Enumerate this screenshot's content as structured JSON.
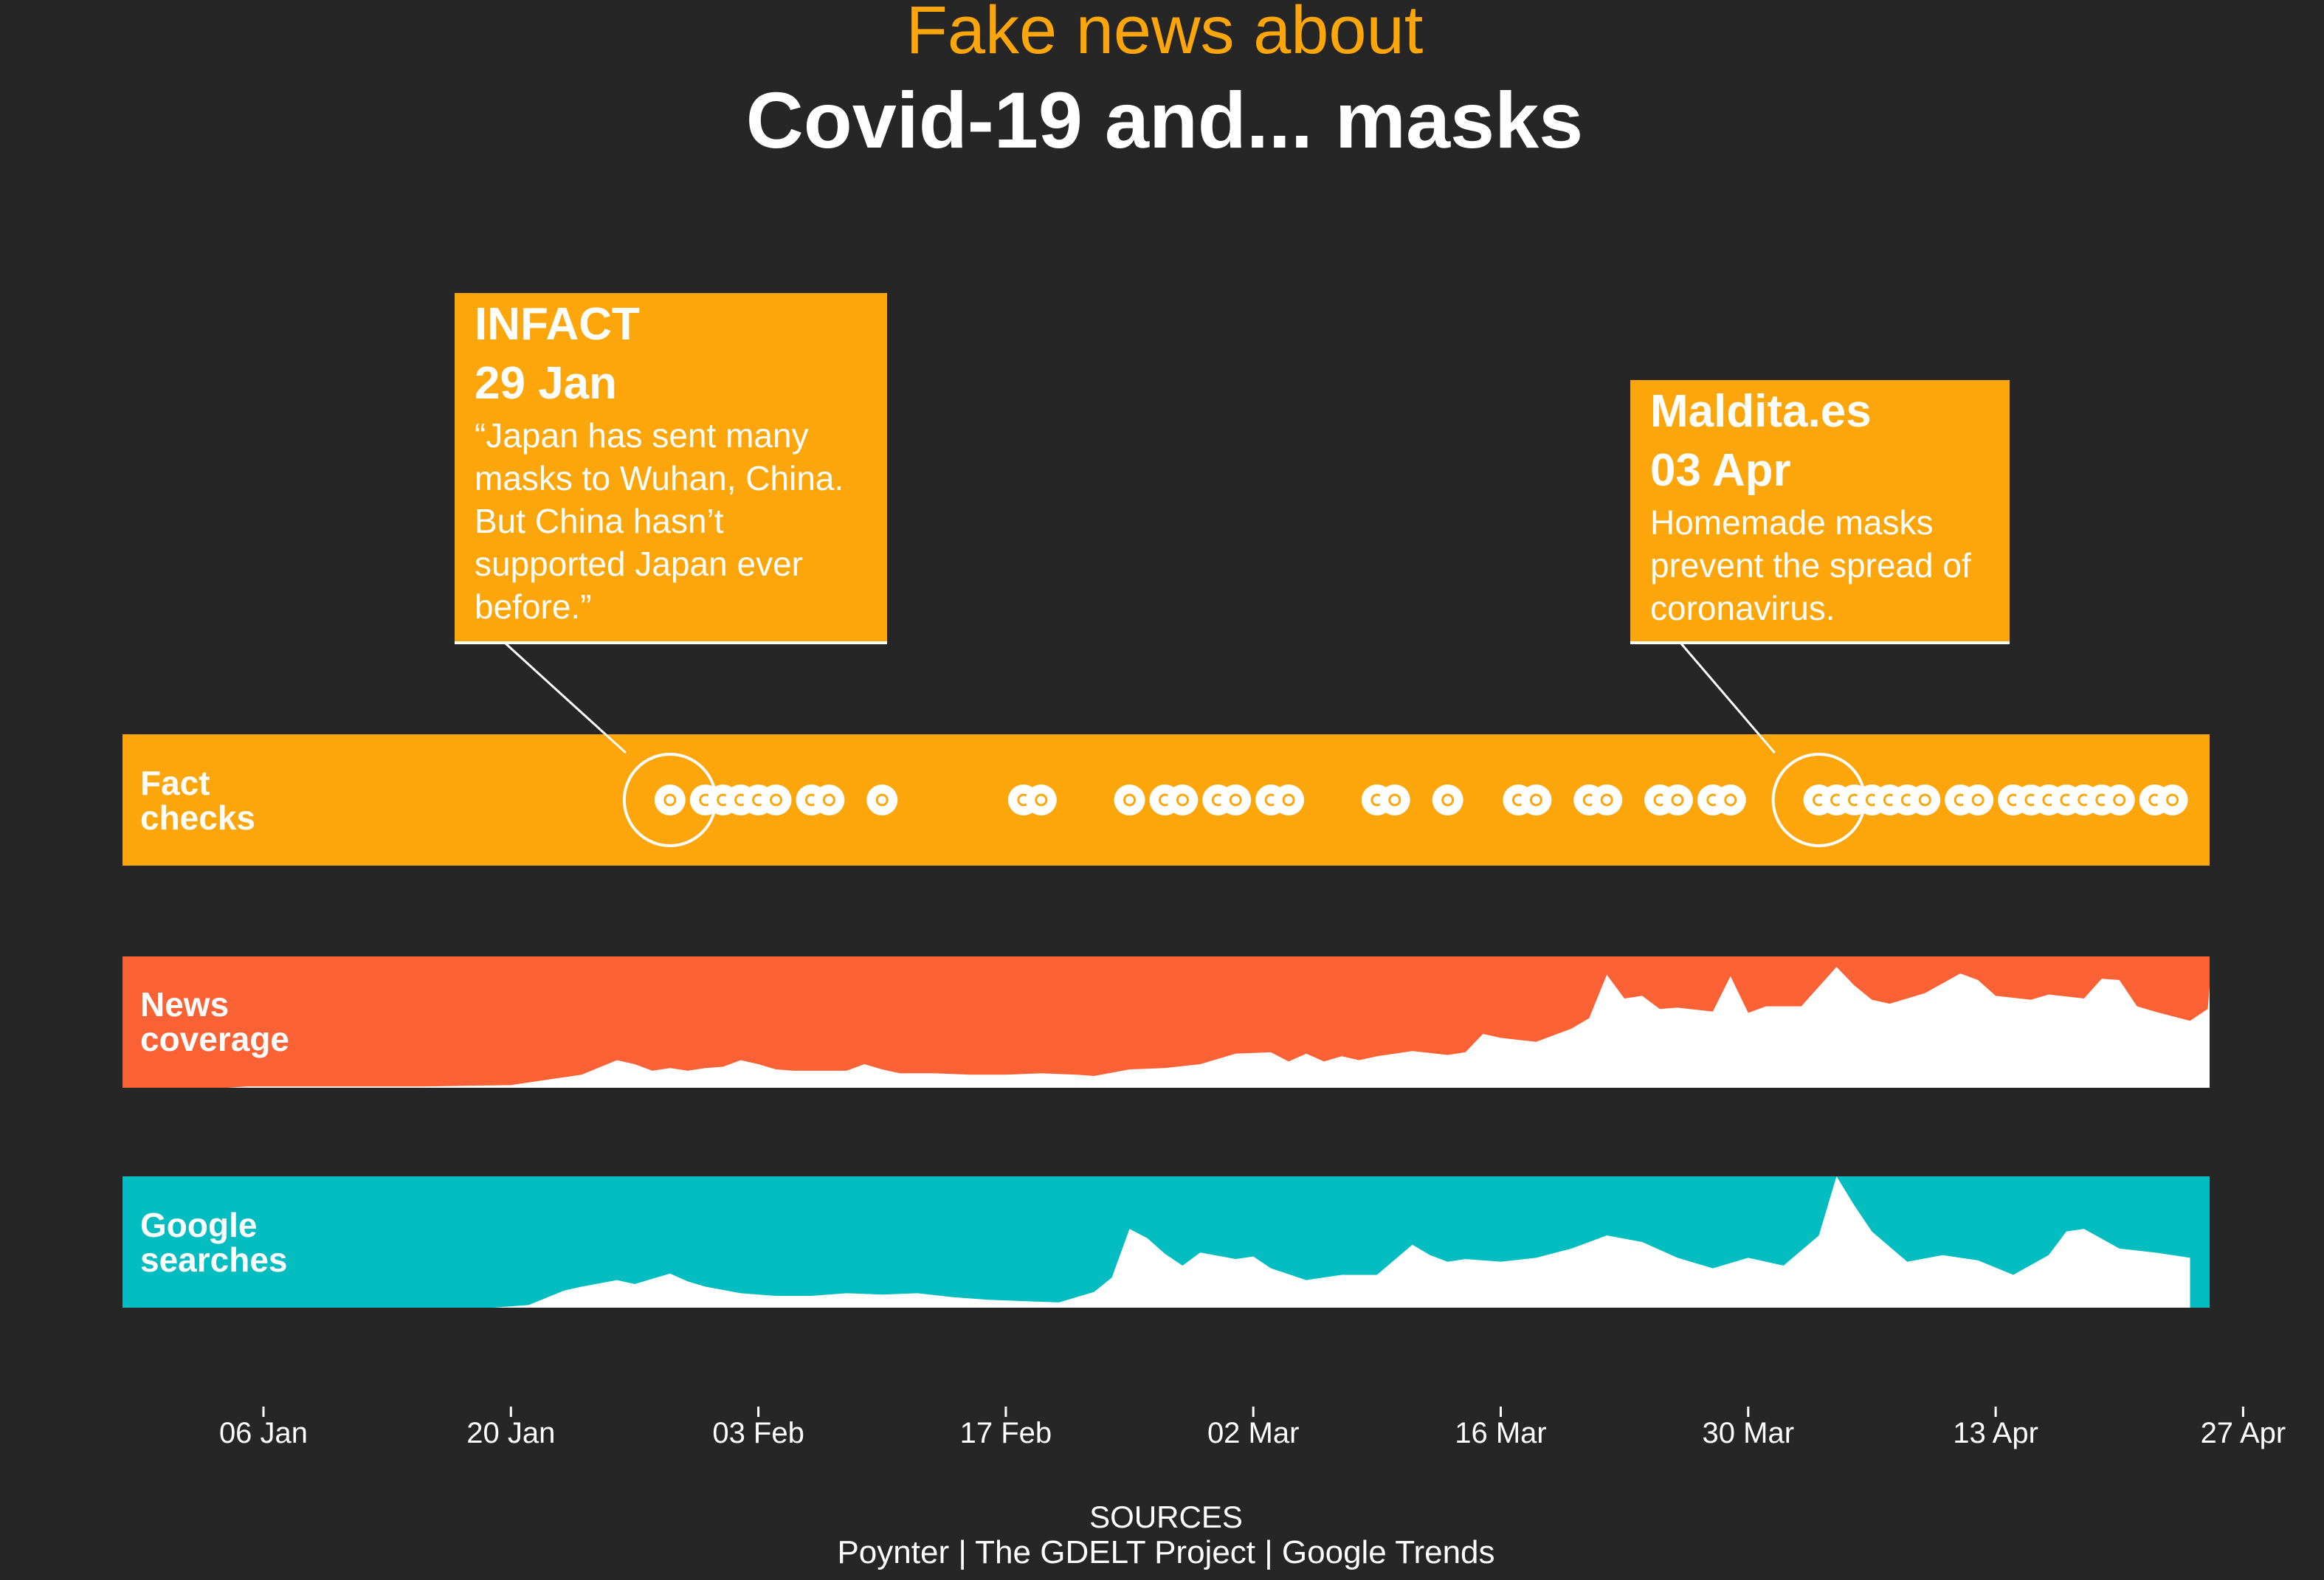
{
  "title": {
    "line1": "Fake news about",
    "line2": "Covid-19 and... masks"
  },
  "colors": {
    "background": "#262626",
    "fact_checks": "#FCA60C",
    "news_coverage": "#FA6135",
    "google_searches": "#04BDC1",
    "area_fill": "#FFFFFF",
    "title_accent": "#FCA60C"
  },
  "callouts": [
    {
      "source": "INFACT",
      "date": "29 Jan",
      "text_lines": [
        "“Japan has sent many",
        "masks to Wuhan, China.",
        "But China hasn’t",
        "supported Japan ever",
        "before.”"
      ],
      "x": "2020-01-29"
    },
    {
      "source": "Maldita.es",
      "date": "03 Apr",
      "text_lines": [
        "Homemade masks",
        "prevent the spread of",
        "coronavirus."
      ],
      "x": "2020-04-03"
    }
  ],
  "sources": {
    "heading": "SOURCES",
    "text": "Poynter | The GDELT Project | Google Trends"
  },
  "chart_data": {
    "type": "area",
    "x_axis": {
      "range": [
        "2019-12-30",
        "2020-04-27"
      ],
      "tick_labels": [
        "06 Jan",
        "20 Jan",
        "03 Feb",
        "17 Feb",
        "02 Mar",
        "16 Mar",
        "30 Mar",
        "13 Apr",
        "27 Apr"
      ],
      "tick_dates": [
        "2020-01-06",
        "2020-01-20",
        "2020-02-03",
        "2020-02-17",
        "2020-03-02",
        "2020-03-16",
        "2020-03-30",
        "2020-04-13",
        "2020-04-27"
      ]
    },
    "panels": [
      {
        "name": "Fact checks",
        "label_lines": [
          "Fact",
          "checks"
        ],
        "type": "dots",
        "highlighted_dates": [
          "2020-01-29",
          "2020-04-03"
        ],
        "dates": [
          "2020-01-29",
          "2020-01-31",
          "2020-02-01",
          "2020-02-02",
          "2020-02-03",
          "2020-02-04",
          "2020-02-06",
          "2020-02-07",
          "2020-02-10",
          "2020-02-18",
          "2020-02-19",
          "2020-02-24",
          "2020-02-26",
          "2020-02-27",
          "2020-02-29",
          "2020-03-01",
          "2020-03-03",
          "2020-03-04",
          "2020-03-09",
          "2020-03-10",
          "2020-03-13",
          "2020-03-17",
          "2020-03-18",
          "2020-03-21",
          "2020-03-22",
          "2020-03-25",
          "2020-03-26",
          "2020-03-28",
          "2020-03-29",
          "2020-04-03",
          "2020-04-04",
          "2020-04-05",
          "2020-04-06",
          "2020-04-07",
          "2020-04-08",
          "2020-04-09",
          "2020-04-11",
          "2020-04-12",
          "2020-04-14",
          "2020-04-15",
          "2020-04-16",
          "2020-04-17",
          "2020-04-18",
          "2020-04-19",
          "2020-04-20",
          "2020-04-22",
          "2020-04-23"
        ]
      },
      {
        "name": "News coverage",
        "label_lines": [
          "News",
          "coverage"
        ],
        "type": "area",
        "ylim": [
          0,
          100
        ],
        "x": [
          "2020-01-04",
          "2020-01-05",
          "2020-01-10",
          "2020-01-15",
          "2020-01-20",
          "2020-01-22",
          "2020-01-24",
          "2020-01-26",
          "2020-01-27",
          "2020-01-28",
          "2020-01-29",
          "2020-01-30",
          "2020-01-31",
          "2020-02-01",
          "2020-02-02",
          "2020-02-03",
          "2020-02-04",
          "2020-02-05",
          "2020-02-06",
          "2020-02-08",
          "2020-02-09",
          "2020-02-10",
          "2020-02-11",
          "2020-02-13",
          "2020-02-15",
          "2020-02-17",
          "2020-02-19",
          "2020-02-21",
          "2020-02-22",
          "2020-02-24",
          "2020-02-26",
          "2020-02-28",
          "2020-03-01",
          "2020-03-03",
          "2020-03-04",
          "2020-03-05",
          "2020-03-06",
          "2020-03-07",
          "2020-03-08",
          "2020-03-09",
          "2020-03-11",
          "2020-03-13",
          "2020-03-14",
          "2020-03-15",
          "2020-03-16",
          "2020-03-18",
          "2020-03-20",
          "2020-03-21",
          "2020-03-22",
          "2020-03-23",
          "2020-03-24",
          "2020-03-25",
          "2020-03-26",
          "2020-03-28",
          "2020-03-29",
          "2020-03-30",
          "2020-03-31",
          "2020-04-02",
          "2020-04-04",
          "2020-04-05",
          "2020-04-06",
          "2020-04-07",
          "2020-04-09",
          "2020-04-11",
          "2020-04-12",
          "2020-04-13",
          "2020-04-15",
          "2020-04-16",
          "2020-04-18",
          "2020-04-19",
          "2020-04-20",
          "2020-04-21",
          "2020-04-22",
          "2020-04-24",
          "2020-04-25",
          "2020-04-27"
        ],
        "values": [
          0,
          1,
          1,
          1,
          2,
          6,
          10,
          21,
          18,
          13,
          15,
          13,
          15,
          16,
          21,
          18,
          14,
          13,
          13,
          13,
          18,
          14,
          11,
          11,
          10,
          10,
          11,
          10,
          9,
          14,
          15,
          18,
          26,
          27,
          20,
          26,
          20,
          24,
          21,
          24,
          28,
          25,
          27,
          41,
          38,
          35,
          45,
          53,
          86,
          68,
          70,
          60,
          61,
          58,
          85,
          57,
          62,
          62,
          92,
          78,
          67,
          64,
          72,
          87,
          82,
          70,
          67,
          71,
          68,
          83,
          82,
          62,
          58,
          51,
          60,
          77
        ]
      },
      {
        "name": "Google searches",
        "label_lines": [
          "Google",
          "searches"
        ],
        "type": "area",
        "ylim": [
          0,
          100
        ],
        "x": [
          "2020-01-19",
          "2020-01-21",
          "2020-01-23",
          "2020-01-24",
          "2020-01-26",
          "2020-01-27",
          "2020-01-29",
          "2020-01-30",
          "2020-01-31",
          "2020-02-02",
          "2020-02-04",
          "2020-02-06",
          "2020-02-08",
          "2020-02-10",
          "2020-02-12",
          "2020-02-14",
          "2020-02-16",
          "2020-02-18",
          "2020-02-20",
          "2020-02-22",
          "2020-02-23",
          "2020-02-24",
          "2020-02-25",
          "2020-02-26",
          "2020-02-27",
          "2020-02-28",
          "2020-03-01",
          "2020-03-02",
          "2020-03-03",
          "2020-03-05",
          "2020-03-07",
          "2020-03-09",
          "2020-03-11",
          "2020-03-12",
          "2020-03-13",
          "2020-03-14",
          "2020-03-16",
          "2020-03-18",
          "2020-03-20",
          "2020-03-22",
          "2020-03-24",
          "2020-03-26",
          "2020-03-28",
          "2020-03-30",
          "2020-04-01",
          "2020-04-03",
          "2020-04-04",
          "2020-04-05",
          "2020-04-06",
          "2020-04-08",
          "2020-04-10",
          "2020-04-12",
          "2020-04-14",
          "2020-04-16",
          "2020-04-17",
          "2020-04-18",
          "2020-04-20",
          "2020-04-22",
          "2020-04-24",
          "2020-04-24"
        ],
        "values": [
          0,
          2,
          13,
          16,
          21,
          18,
          26,
          20,
          16,
          11,
          9,
          9,
          11,
          10,
          11,
          8,
          6,
          5,
          4,
          12,
          23,
          60,
          53,
          41,
          32,
          42,
          37,
          39,
          30,
          21,
          25,
          25,
          48,
          40,
          35,
          37,
          35,
          38,
          45,
          55,
          50,
          38,
          30,
          38,
          32,
          55,
          100,
          78,
          58,
          35,
          40,
          36,
          25,
          40,
          58,
          60,
          45,
          42,
          38,
          0
        ]
      }
    ]
  }
}
